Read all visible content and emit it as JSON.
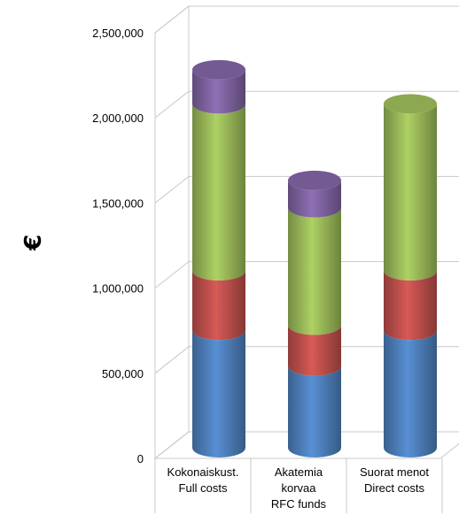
{
  "chart_data": {
    "type": "bar",
    "stacked": true,
    "three_d": true,
    "ylabel": "€",
    "ylim": [
      0,
      2500000
    ],
    "yticks": [
      "0",
      "500,000",
      "1,000,000",
      "1,500,000",
      "2,000,000",
      "2,500,000"
    ],
    "ytick_values": [
      0,
      500000,
      1000000,
      1500000,
      2000000,
      2500000
    ],
    "categories": [
      [
        "Kokonaiskust.",
        "Full costs"
      ],
      [
        "Akatemia",
        "korvaa",
        "RFC funds"
      ],
      [
        "Suorat menot",
        "Direct costs"
      ]
    ],
    "series": [
      {
        "values": [
          690000,
          480000,
          690000
        ],
        "color": "#4F81BD"
      },
      {
        "values": [
          350000,
          240000,
          350000
        ],
        "color": "#C0504D"
      },
      {
        "values": [
          980000,
          690000,
          980000
        ],
        "color": "#9BBB59"
      },
      {
        "values": [
          200000,
          160000,
          0
        ],
        "color": "#8064A2"
      }
    ],
    "grid": true
  }
}
